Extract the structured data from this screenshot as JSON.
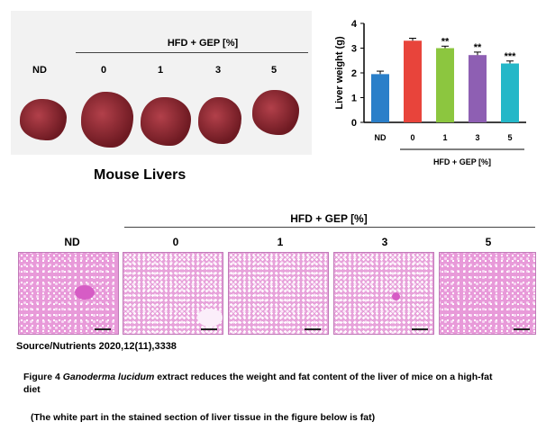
{
  "photo_panel": {
    "header": "HFD + GEP [%]",
    "groups": [
      "ND",
      "0",
      "1",
      "3",
      "5"
    ],
    "caption": "Mouse Livers"
  },
  "chart_data": {
    "type": "bar",
    "categories": [
      "ND",
      "0",
      "1",
      "3",
      "5"
    ],
    "values": [
      1.95,
      3.3,
      3.0,
      2.72,
      2.38
    ],
    "errors": [
      0.12,
      0.1,
      0.08,
      0.12,
      0.1
    ],
    "significance": [
      "",
      "",
      "**",
      "**",
      "***"
    ],
    "colors": [
      "#2a7fc9",
      "#e8443b",
      "#8cc63f",
      "#8e5fb3",
      "#24b7c8"
    ],
    "ylabel": "Liver weight (g)",
    "ylim": [
      0,
      4
    ],
    "yticks": [
      "0",
      "1",
      "2",
      "3",
      "4"
    ],
    "group_label": "HFD + GEP [%]"
  },
  "histology": {
    "header": "HFD + GEP [%]",
    "groups": [
      "ND",
      "0",
      "1",
      "3",
      "5"
    ]
  },
  "source": "Source/Nutrients 2020,12(11),3338",
  "figure_caption": {
    "prefix": "Figure 4",
    "species": "Ganoderma lucidum",
    "rest": "extract reduces the weight and fat content of the liver of mice on a high-fat diet",
    "note": "(The white part in the stained section of liver tissue in the figure below is fat)"
  }
}
